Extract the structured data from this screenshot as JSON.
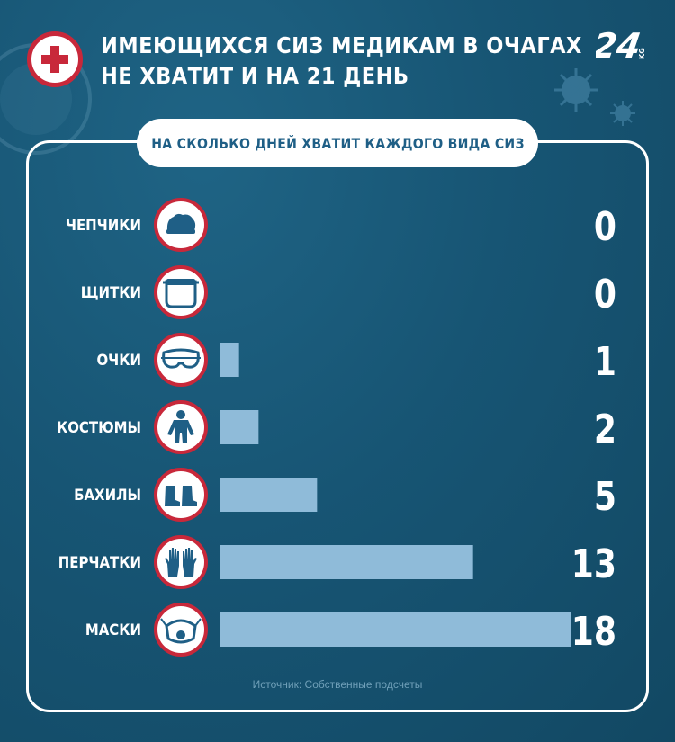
{
  "header": {
    "title_line1": "ИМЕЮЩИХСЯ СИЗ МЕДИКАМ В ОЧАГАХ",
    "title_line2": "НЕ ХВАТИТ И НА 21 ДЕНЬ",
    "logo_number": "24",
    "logo_suffix": "KG"
  },
  "subtitle": "НА СКОЛЬКО ДНЕЙ ХВАТИТ КАЖДОГО ВИДА СИЗ",
  "source": "Источник: Собственные подсчеты",
  "colors": {
    "background": "#175574",
    "accent_red": "#c8283a",
    "bar": "#8fbbd9",
    "icon_fill": "#1f5f86"
  },
  "chart_data": {
    "type": "bar",
    "orientation": "horizontal",
    "categories": [
      "ЧЕПЧИКИ",
      "ЩИТКИ",
      "ОЧКИ",
      "КОСТЮМЫ",
      "БАХИЛЫ",
      "ПЕРЧАТКИ",
      "МАСКИ"
    ],
    "values": [
      0,
      0,
      1,
      2,
      5,
      13,
      18
    ],
    "icons": [
      "cap-icon",
      "face-shield-icon",
      "goggles-icon",
      "suit-icon",
      "shoe-covers-icon",
      "gloves-icon",
      "mask-icon"
    ],
    "xlim": [
      0,
      18
    ],
    "grid": false,
    "legend": "none"
  }
}
